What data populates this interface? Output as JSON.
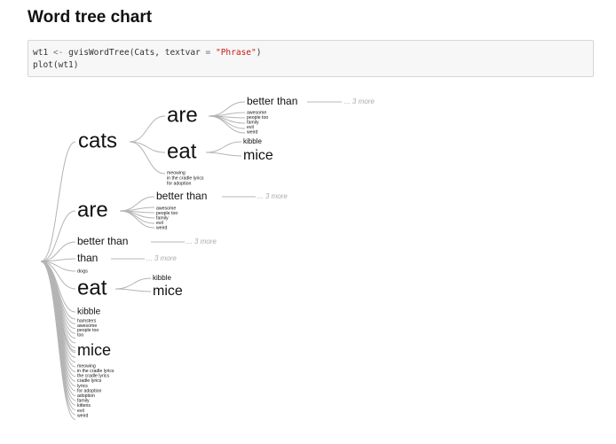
{
  "page": {
    "title": "Word tree chart"
  },
  "code": {
    "line1_pre": "wt1 ",
    "line1_op": "<-",
    "line1_mid": " gvisWordTree(Cats, textvar ",
    "line1_eq": "=",
    "line1_str": "\"Phrase\"",
    "line1_post": ")",
    "line2": "plot(wt1)"
  },
  "tree": {
    "nodes": {
      "cats": "cats",
      "cats_are": "are",
      "cats_are_better": "better  than",
      "cats_are_better_more": "... 3 more",
      "cats_are_leaves": [
        "awesome",
        "people too",
        "family",
        "evil",
        "weird"
      ],
      "cats_eat": "eat",
      "cats_eat_kibble": "kibble",
      "cats_eat_mice": "mice",
      "cats_leaves": [
        "meowing",
        "in the cradle lyrics",
        "for adoption"
      ],
      "are": "are",
      "are_better": "better  than",
      "are_better_more": "... 3 more",
      "are_leaves": [
        "awesome",
        "people too",
        "family",
        "evil",
        "weird"
      ],
      "better": "better  than",
      "better_more": "... 3 more",
      "than": "than",
      "than_more": "... 3 more",
      "dogs": "dogs",
      "eat": "eat",
      "eat_kibble": "kibble",
      "eat_mice": "mice",
      "kibble": "kibble",
      "kibble_leaves": [
        "hamsters",
        "awesome",
        "people too",
        "too"
      ],
      "mice": "mice",
      "mice_leaves": [
        "meowing",
        "in the cradle lyrics",
        "the cradle lyrics",
        "cradle lyrics",
        "lyrics",
        "for adoption",
        "adoption",
        "family",
        "kittens",
        "evil",
        "weird"
      ]
    }
  }
}
